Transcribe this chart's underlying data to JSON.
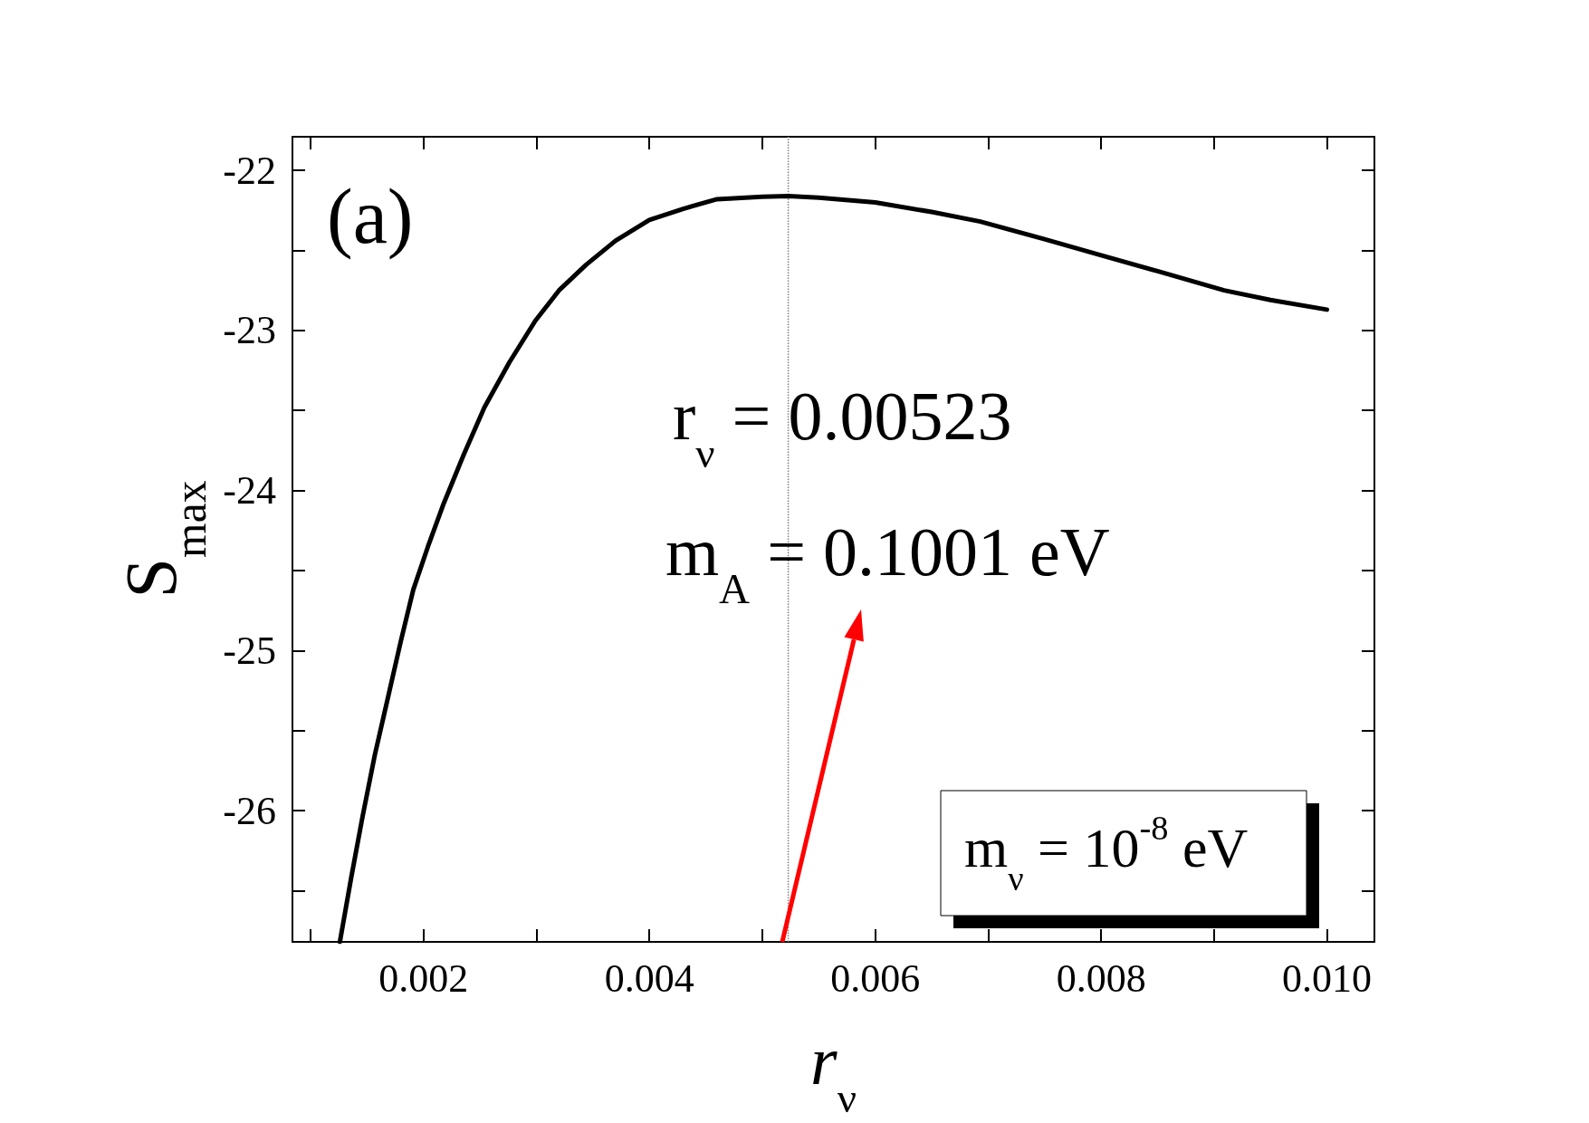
{
  "chart_data": {
    "type": "line",
    "xlabel": "r$_{ν}$",
    "ylabel": "S$_{max}$",
    "x": [
      0.00126,
      0.00136,
      0.00146,
      0.00157,
      0.00169,
      0.0018,
      0.00191,
      0.00204,
      0.00218,
      0.00236,
      0.00254,
      0.00276,
      0.00299,
      0.0032,
      0.00344,
      0.0037,
      0.004,
      0.0043,
      0.0046,
      0.005,
      0.00523,
      0.0055,
      0.006,
      0.0065,
      0.00693,
      0.0075,
      0.008,
      0.0085,
      0.00909,
      0.0095,
      0.01
    ],
    "series": [
      {
        "color": "#000000",
        "values": [
          -26.82,
          -26.42,
          -26.04,
          -25.65,
          -25.28,
          -24.94,
          -24.62,
          -24.35,
          -24.08,
          -23.77,
          -23.48,
          -23.2,
          -22.94,
          -22.75,
          -22.59,
          -22.44,
          -22.31,
          -22.24,
          -22.18,
          -22.165,
          -22.16,
          -22.17,
          -22.2,
          -22.26,
          -22.32,
          -22.43,
          -22.53,
          -22.63,
          -22.75,
          -22.81,
          -22.87
        ]
      }
    ],
    "xlim": [
      0.00084,
      0.01042
    ],
    "xticks": [
      0.002,
      0.004,
      0.006,
      0.008,
      {
        "value": 0.01,
        "label": "0.010"
      }
    ],
    "ylim": [
      -26.82,
      -21.79
    ],
    "yticks": [
      -26,
      -25,
      -24,
      -23,
      -22
    ],
    "ref_lines": [
      {
        "axis": "x",
        "value": 0.00523,
        "color": "#808080",
        "line_style": "dotted"
      }
    ],
    "annotations": [
      "(a)",
      "r$_{ν}$ = 0.00523",
      "m$_{A}$ = 0.1001 eV",
      "m$_{ν}$ = 10$^{-8}$ eV"
    ],
    "grid": false,
    "marker": "none",
    "line_style": "solid"
  }
}
